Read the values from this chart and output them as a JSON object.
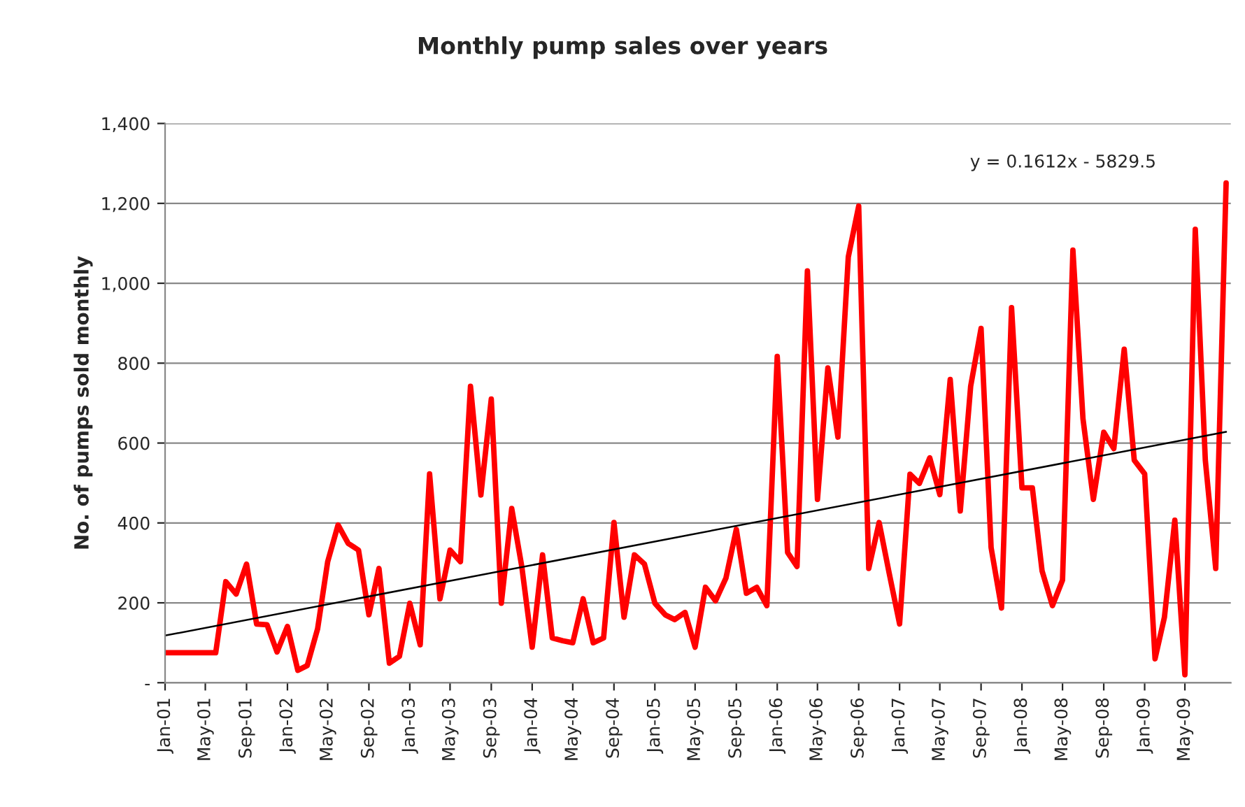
{
  "chart_data": {
    "type": "line",
    "title": "Monthly pump sales over years",
    "ylabel": "No. of pumps sold monthly",
    "annotations": [
      "y = 0.1612x - 5829.5"
    ],
    "xlim": [
      "2001-01",
      "2009-09-15"
    ],
    "xticks": [
      {
        "value": "2001-01",
        "label": "Jan-01"
      },
      {
        "value": "2001-05",
        "label": "May-01"
      },
      {
        "value": "2001-09",
        "label": "Sep-01"
      },
      {
        "value": "2002-01",
        "label": "Jan-02"
      },
      {
        "value": "2002-05",
        "label": "May-02"
      },
      {
        "value": "2002-09",
        "label": "Sep-02"
      },
      {
        "value": "2003-01",
        "label": "Jan-03"
      },
      {
        "value": "2003-05",
        "label": "May-03"
      },
      {
        "value": "2003-09",
        "label": "Sep-03"
      },
      {
        "value": "2004-01",
        "label": "Jan-04"
      },
      {
        "value": "2004-05",
        "label": "May-04"
      },
      {
        "value": "2004-09",
        "label": "Sep-04"
      },
      {
        "value": "2005-01",
        "label": "Jan-05"
      },
      {
        "value": "2005-05",
        "label": "May-05"
      },
      {
        "value": "2005-09",
        "label": "Sep-05"
      },
      {
        "value": "2006-01",
        "label": "Jan-06"
      },
      {
        "value": "2006-05",
        "label": "May-06"
      },
      {
        "value": "2006-09",
        "label": "Sep-06"
      },
      {
        "value": "2007-01",
        "label": "Jan-07"
      },
      {
        "value": "2007-05",
        "label": "May-07"
      },
      {
        "value": "2007-09",
        "label": "Sep-07"
      },
      {
        "value": "2008-01",
        "label": "Jan-08"
      },
      {
        "value": "2008-05",
        "label": "May-08"
      },
      {
        "value": "2008-09",
        "label": "Sep-08"
      },
      {
        "value": "2009-01",
        "label": "Jan-09"
      },
      {
        "value": "2009-05",
        "label": "May-09"
      }
    ],
    "ylim": [
      0,
      1400
    ],
    "yticks": [
      {
        "value": 0,
        "label": "-"
      },
      200,
      400,
      600,
      800,
      {
        "value": 1000,
        "label": "1,000"
      },
      {
        "value": 1200,
        "label": "1,200"
      },
      {
        "value": 1400,
        "label": "1,400"
      }
    ],
    "grid": "y",
    "series": [
      {
        "color": "#ff0000",
        "x": [
          "2001-01",
          "2001-02",
          "2001-03",
          "2001-04",
          "2001-05",
          "2001-06",
          "2001-07",
          "2001-08",
          "2001-09",
          "2001-10",
          "2001-11",
          "2001-12",
          "2002-01",
          "2002-02",
          "2002-03",
          "2002-04",
          "2002-05",
          "2002-06",
          "2002-07",
          "2002-08",
          "2002-09",
          "2002-10",
          "2002-11",
          "2002-12",
          "2003-01",
          "2003-02",
          "2003-03",
          "2003-04",
          "2003-05",
          "2003-06",
          "2003-07",
          "2003-08",
          "2003-09",
          "2003-10",
          "2003-11",
          "2003-12",
          "2004-01",
          "2004-02",
          "2004-03",
          "2004-04",
          "2004-05",
          "2004-06",
          "2004-07",
          "2004-08",
          "2004-09",
          "2004-10",
          "2004-11",
          "2004-12",
          "2005-01",
          "2005-02",
          "2005-03",
          "2005-04",
          "2005-05",
          "2005-06",
          "2005-07",
          "2005-08",
          "2005-09",
          "2005-10",
          "2005-11",
          "2005-12",
          "2006-01",
          "2006-02",
          "2006-03",
          "2006-04",
          "2006-05",
          "2006-06",
          "2006-07",
          "2006-08",
          "2006-09",
          "2006-10",
          "2006-11",
          "2006-12",
          "2007-01",
          "2007-02",
          "2007-03",
          "2007-04",
          "2007-05",
          "2007-06",
          "2007-07",
          "2007-08",
          "2007-09",
          "2007-10",
          "2007-11",
          "2007-12",
          "2008-01",
          "2008-02",
          "2008-03",
          "2008-04",
          "2008-05",
          "2008-06",
          "2008-07",
          "2008-08",
          "2008-09",
          "2008-10",
          "2008-11",
          "2008-12",
          "2009-01",
          "2009-02",
          "2009-03",
          "2009-04",
          "2009-05",
          "2009-06",
          "2009-07",
          "2009-08",
          "2009-09"
        ],
        "values": [
          75,
          75,
          75,
          75,
          75,
          75,
          253,
          222,
          297,
          147,
          145,
          77,
          141,
          31,
          43,
          135,
          303,
          395,
          349,
          332,
          170,
          286,
          49,
          66,
          199,
          95,
          523,
          210,
          332,
          303,
          742,
          470,
          710,
          199,
          436,
          291,
          89,
          320,
          112,
          105,
          100,
          210,
          100,
          112,
          401,
          164,
          320,
          297,
          199,
          170,
          158,
          176,
          89,
          239,
          205,
          262,
          384,
          224,
          239,
          193,
          817,
          326,
          291,
          1031,
          459,
          788,
          615,
          1066,
          1193,
          286,
          401,
          274,
          147,
          522,
          499,
          563,
          471,
          759,
          430,
          742,
          887,
          338,
          187,
          939,
          488,
          488,
          280,
          193,
          257,
          1083,
          661,
          459,
          627,
          586,
          835,
          557,
          523,
          60,
          164,
          407,
          20,
          1135,
          557,
          286,
          1251
        ]
      },
      {
        "color": "#000000",
        "x": [
          "2001-01",
          "2009-09"
        ],
        "values": [
          118,
          628
        ]
      }
    ]
  }
}
